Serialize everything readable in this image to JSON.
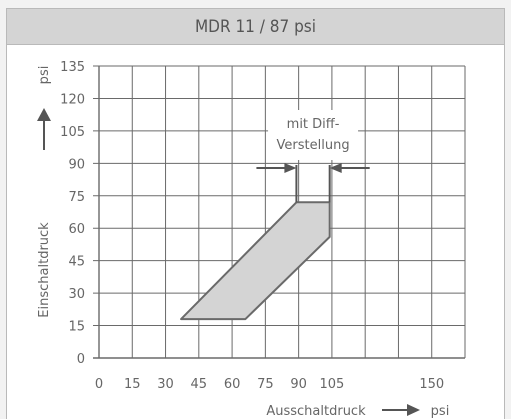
{
  "chart_data": {
    "type": "area",
    "title": "MDR 11 / 87 psi",
    "xlabel": "Ausschaltdruck",
    "xunit": "psi",
    "ylabel": "Einschaltdruck",
    "yunit": "psi",
    "xlim": [
      0,
      165
    ],
    "ylim": [
      0,
      135
    ],
    "x_ticks": [
      0,
      15,
      30,
      45,
      60,
      75,
      90,
      105,
      150
    ],
    "y_ticks": [
      0,
      15,
      30,
      45,
      60,
      75,
      90,
      105,
      120,
      135
    ],
    "grid": true,
    "region": {
      "vertices": [
        [
          37,
          18
        ],
        [
          89,
          72
        ],
        [
          104,
          72
        ],
        [
          104,
          56
        ],
        [
          66,
          18
        ]
      ],
      "fill": "#d4d4d4",
      "stroke": "#6a6a6a"
    },
    "annotation": {
      "line1": "mit Diff-",
      "line2": "Verstellung",
      "span_x": [
        89,
        104
      ]
    },
    "colors": {
      "grid": "#6a6a6a",
      "frame": "#b9b9b9",
      "header_bg": "#d4d4d4",
      "text": "#555555"
    }
  }
}
